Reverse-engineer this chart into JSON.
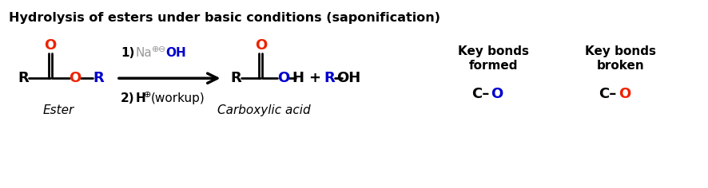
{
  "title": "Hydrolysis of esters under basic conditions (saponification)",
  "title_fontsize": 11.5,
  "bg_color": "#ffffff",
  "black": "#000000",
  "red": "#ee2200",
  "blue": "#0000cc",
  "gray": "#999999",
  "ester_label": "Ester",
  "carboxylicacid_label": "Carboxylic acid",
  "keybonds_formed_title": "Key bonds\nformed",
  "keybonds_broken_title": "Key bonds\nbroken"
}
